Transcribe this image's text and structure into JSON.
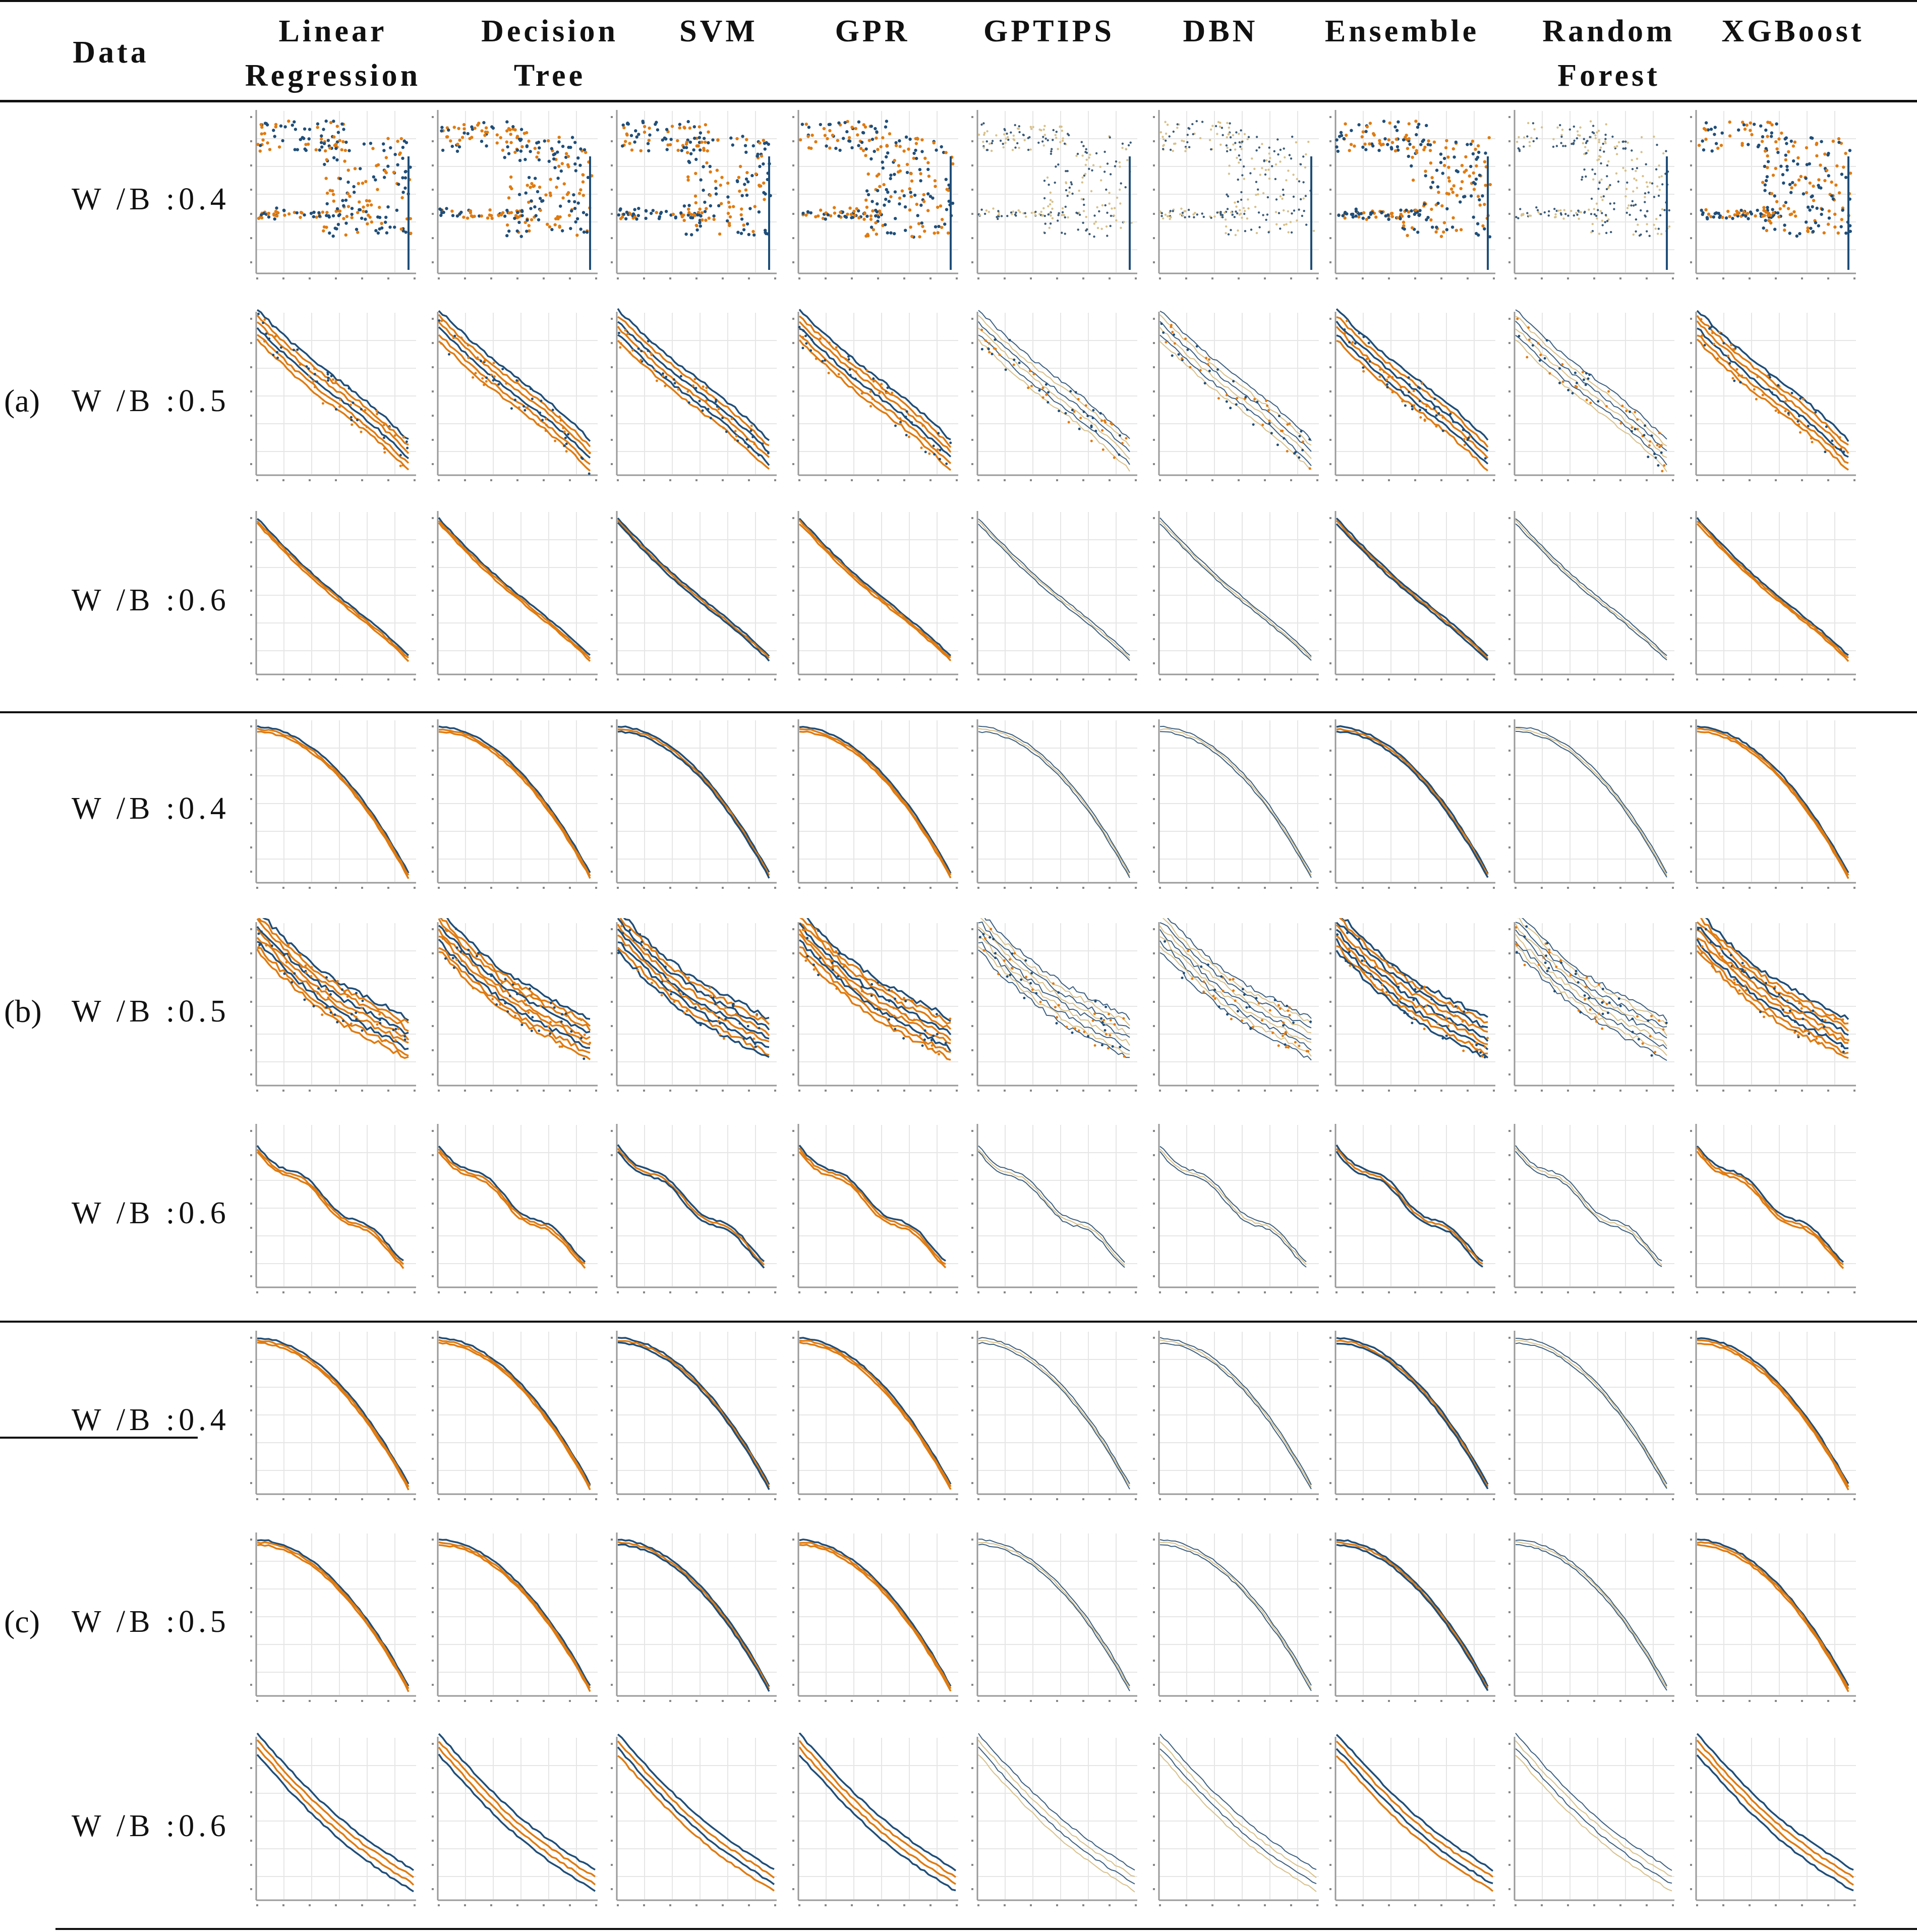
{
  "header": {
    "data_label": "Data",
    "models": [
      "Linear\nRegression",
      "Decision\nTree",
      "SVM",
      "GPR",
      "GPTIPS",
      "DBN",
      "Ensemble",
      "Random\nForest",
      "XGBoost"
    ]
  },
  "groups": [
    {
      "label": "(a)",
      "rows": [
        "W /B :0.4",
        "W /B :0.5",
        "W /B :0.6"
      ]
    },
    {
      "label": "(b)",
      "rows": [
        "W /B :0.4",
        "W /B :0.5",
        "W /B :0.6"
      ]
    },
    {
      "label": "(c)",
      "rows": [
        "W /B :0.4",
        "W /B :0.5",
        "W /B :0.6"
      ]
    }
  ],
  "colors": {
    "actual": "#1f4e79",
    "predicted": "#e07b10",
    "faint": "#d7c08a",
    "grid": "#e6e6e6"
  },
  "chart_data": {
    "type": "line",
    "title": "",
    "grid_of": "3 groups x 3 W/B ratios x 9 models",
    "series_colors": [
      "#1f4e79",
      "#e07b10"
    ],
    "panel_shapes": [
      "scatter-cluster",
      "band-diagonal",
      "thin-diagonal",
      "concave-curve",
      "band-wide",
      "wavy-diagonal",
      "smooth-concave",
      "smooth-concave",
      "double-loop"
    ]
  }
}
